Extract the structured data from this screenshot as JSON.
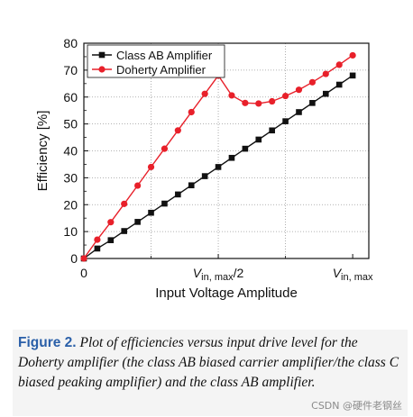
{
  "chart_data": {
    "type": "line",
    "xlabel": "Input Voltage Amplitude",
    "ylabel": "Efficiency [%]",
    "ylim": [
      0,
      80
    ],
    "yticks": [
      0,
      10,
      20,
      30,
      40,
      50,
      60,
      70,
      80
    ],
    "xlim": [
      0,
      1.06
    ],
    "xtick_labels": [
      {
        "pos": 0,
        "main": "0",
        "sub": ""
      },
      {
        "pos": 0.5,
        "main": "V",
        "sub": "in, max",
        "suffix": "/2"
      },
      {
        "pos": 1.0,
        "main": "V",
        "sub": "in, max",
        "suffix": ""
      }
    ],
    "grid": true,
    "legend_position": "top-left",
    "series": [
      {
        "name": "Class AB Amplifier",
        "marker": "square",
        "color": "#111111",
        "x": [
          0,
          0.05,
          0.1,
          0.15,
          0.2,
          0.25,
          0.3,
          0.35,
          0.4,
          0.45,
          0.5,
          0.55,
          0.6,
          0.65,
          0.7,
          0.75,
          0.8,
          0.85,
          0.9,
          0.95,
          1.0
        ],
        "y": [
          0,
          3.7,
          6.8,
          10.2,
          13.6,
          17,
          20.4,
          23.8,
          27.2,
          30.6,
          34,
          37.4,
          40.8,
          44.2,
          47.6,
          51,
          54.4,
          57.8,
          61.2,
          64.6,
          68
        ]
      },
      {
        "name": "Doherty Amplifier",
        "marker": "circle",
        "color": "#e8202a",
        "x": [
          0,
          0.05,
          0.1,
          0.15,
          0.2,
          0.25,
          0.3,
          0.35,
          0.4,
          0.45,
          0.5,
          0.55,
          0.6,
          0.65,
          0.7,
          0.75,
          0.8,
          0.85,
          0.9,
          0.95,
          1.0
        ],
        "y": [
          0,
          7,
          13.5,
          20.3,
          27.1,
          34,
          40.8,
          47.6,
          54.4,
          61.2,
          68,
          60.6,
          57.8,
          57.6,
          58.4,
          60.4,
          62.7,
          65.5,
          68.6,
          72,
          75.5
        ]
      }
    ]
  },
  "caption": {
    "label": "Figure 2.",
    "text": " Plot of efficiencies versus input drive level for the Doherty amplifier (the class AB biased carrier amplifier/the class C biased peaking amplifier) and the class AB amplifier."
  },
  "watermark": "CSDN @硬件老钢丝"
}
